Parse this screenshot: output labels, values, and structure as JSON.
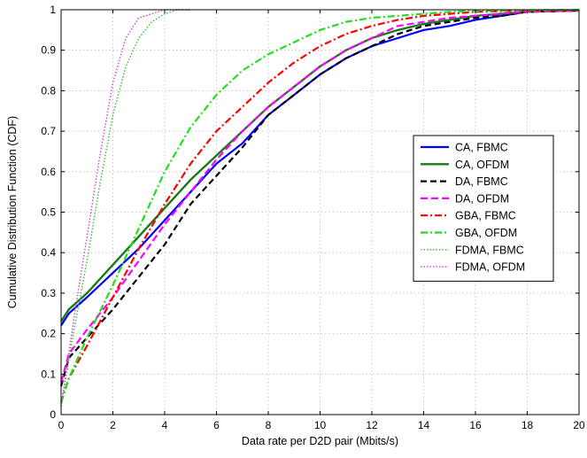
{
  "chart_data": {
    "type": "line",
    "title": "",
    "xlabel": "Data rate per D2D pair (Mbits/s)",
    "ylabel": "Cumulative Distribution Function (CDF)",
    "xlim": [
      0,
      20
    ],
    "ylim": [
      0,
      1
    ],
    "xticks": [
      "0",
      "2",
      "4",
      "6",
      "8",
      "10",
      "12",
      "14",
      "16",
      "18",
      "20"
    ],
    "yticks": [
      "0",
      "0.1",
      "0.2",
      "0.3",
      "0.4",
      "0.5",
      "0.6",
      "0.7",
      "0.8",
      "0.9",
      "1"
    ],
    "grid": true,
    "legend_position": "right",
    "series": [
      {
        "name": "CA, FBMC",
        "color": "#0000ff",
        "dash": "solid",
        "width": 2.2,
        "points": [
          [
            0,
            0.22
          ],
          [
            0.3,
            0.25
          ],
          [
            1,
            0.29
          ],
          [
            2,
            0.35
          ],
          [
            3,
            0.41
          ],
          [
            4,
            0.48
          ],
          [
            5,
            0.55
          ],
          [
            6,
            0.62
          ],
          [
            7,
            0.67
          ],
          [
            8,
            0.74
          ],
          [
            9,
            0.79
          ],
          [
            10,
            0.84
          ],
          [
            11,
            0.88
          ],
          [
            12,
            0.91
          ],
          [
            13,
            0.93
          ],
          [
            14,
            0.95
          ],
          [
            15,
            0.96
          ],
          [
            16,
            0.975
          ],
          [
            17,
            0.985
          ],
          [
            18,
            0.995
          ],
          [
            20,
            0.998
          ]
        ]
      },
      {
        "name": "CA, OFDM",
        "color": "#1a7a1a",
        "dash": "solid",
        "width": 2.4,
        "points": [
          [
            0,
            0.23
          ],
          [
            0.3,
            0.26
          ],
          [
            1,
            0.3
          ],
          [
            2,
            0.37
          ],
          [
            3,
            0.44
          ],
          [
            4,
            0.51
          ],
          [
            5,
            0.58
          ],
          [
            6,
            0.64
          ],
          [
            7,
            0.7
          ],
          [
            8,
            0.76
          ],
          [
            9,
            0.81
          ],
          [
            10,
            0.86
          ],
          [
            11,
            0.9
          ],
          [
            12,
            0.93
          ],
          [
            13,
            0.95
          ],
          [
            14,
            0.965
          ],
          [
            15,
            0.975
          ],
          [
            16,
            0.985
          ],
          [
            17,
            0.99
          ],
          [
            18,
            0.995
          ],
          [
            20,
            0.998
          ]
        ]
      },
      {
        "name": "DA, FBMC",
        "color": "#000000",
        "dash": "7 4",
        "width": 2.2,
        "points": [
          [
            0,
            0.07
          ],
          [
            0.3,
            0.14
          ],
          [
            1,
            0.19
          ],
          [
            2,
            0.26
          ],
          [
            3,
            0.34
          ],
          [
            4,
            0.42
          ],
          [
            5,
            0.52
          ],
          [
            6,
            0.59
          ],
          [
            7,
            0.66
          ],
          [
            8,
            0.74
          ],
          [
            9,
            0.79
          ],
          [
            10,
            0.84
          ],
          [
            11,
            0.88
          ],
          [
            12,
            0.91
          ],
          [
            13,
            0.94
          ],
          [
            14,
            0.96
          ],
          [
            15,
            0.97
          ],
          [
            16,
            0.98
          ],
          [
            17,
            0.985
          ],
          [
            18,
            0.995
          ],
          [
            20,
            0.998
          ]
        ]
      },
      {
        "name": "DA, OFDM",
        "color": "#ff00ff",
        "dash": "8 4",
        "width": 2.2,
        "points": [
          [
            0,
            0.08
          ],
          [
            0.3,
            0.15
          ],
          [
            1,
            0.21
          ],
          [
            2,
            0.29
          ],
          [
            3,
            0.38
          ],
          [
            4,
            0.47
          ],
          [
            5,
            0.55
          ],
          [
            6,
            0.63
          ],
          [
            7,
            0.7
          ],
          [
            8,
            0.76
          ],
          [
            9,
            0.81
          ],
          [
            10,
            0.86
          ],
          [
            11,
            0.9
          ],
          [
            12,
            0.93
          ],
          [
            13,
            0.96
          ],
          [
            14,
            0.97
          ],
          [
            15,
            0.98
          ],
          [
            16,
            0.985
          ],
          [
            17,
            0.99
          ],
          [
            18,
            0.995
          ],
          [
            20,
            0.998
          ]
        ]
      },
      {
        "name": "GBA, FBMC",
        "color": "#ff0000",
        "dash": "8 3 2 3",
        "width": 2.2,
        "points": [
          [
            0,
            0.03
          ],
          [
            0.3,
            0.09
          ],
          [
            1,
            0.17
          ],
          [
            2,
            0.29
          ],
          [
            3,
            0.41
          ],
          [
            4,
            0.52
          ],
          [
            5,
            0.62
          ],
          [
            6,
            0.7
          ],
          [
            7,
            0.76
          ],
          [
            8,
            0.82
          ],
          [
            9,
            0.87
          ],
          [
            10,
            0.91
          ],
          [
            11,
            0.94
          ],
          [
            12,
            0.96
          ],
          [
            13,
            0.975
          ],
          [
            14,
            0.985
          ],
          [
            15,
            0.99
          ],
          [
            16,
            0.995
          ],
          [
            18,
            0.998
          ],
          [
            20,
            0.999
          ]
        ]
      },
      {
        "name": "GBA, OFDM",
        "color": "#22dd22",
        "dash": "8 3 2 3",
        "width": 2.2,
        "points": [
          [
            0,
            0.03
          ],
          [
            0.3,
            0.09
          ],
          [
            1,
            0.19
          ],
          [
            2,
            0.32
          ],
          [
            3,
            0.46
          ],
          [
            4,
            0.6
          ],
          [
            5,
            0.71
          ],
          [
            6,
            0.79
          ],
          [
            7,
            0.85
          ],
          [
            8,
            0.89
          ],
          [
            9,
            0.92
          ],
          [
            10,
            0.95
          ],
          [
            11,
            0.97
          ],
          [
            12,
            0.98
          ],
          [
            13,
            0.985
          ],
          [
            14,
            0.99
          ],
          [
            15,
            0.995
          ],
          [
            16,
            0.997
          ],
          [
            18,
            0.999
          ],
          [
            20,
            1.0
          ]
        ]
      },
      {
        "name": "FDMA, FBMC",
        "color": "#33bb33",
        "dash": "1.5 2",
        "width": 1.4,
        "points": [
          [
            0,
            0.02
          ],
          [
            0.5,
            0.21
          ],
          [
            1,
            0.38
          ],
          [
            1.5,
            0.57
          ],
          [
            2,
            0.74
          ],
          [
            2.5,
            0.86
          ],
          [
            3,
            0.93
          ],
          [
            3.5,
            0.97
          ],
          [
            4,
            0.99
          ],
          [
            4.5,
            1.0
          ],
          [
            5,
            1.0
          ]
        ]
      },
      {
        "name": "FDMA, OFDM",
        "color": "#cc44cc",
        "dash": "1.5 2",
        "width": 1.4,
        "points": [
          [
            0,
            0.02
          ],
          [
            0.5,
            0.24
          ],
          [
            1,
            0.44
          ],
          [
            1.5,
            0.64
          ],
          [
            2,
            0.82
          ],
          [
            2.5,
            0.93
          ],
          [
            3,
            0.98
          ],
          [
            3.5,
            0.99
          ],
          [
            4,
            1.0
          ],
          [
            5,
            1.0
          ]
        ]
      }
    ]
  }
}
